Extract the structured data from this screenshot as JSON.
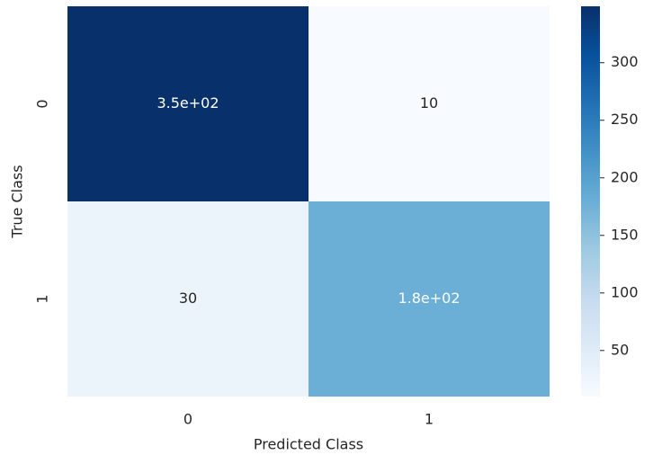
{
  "chart_data": {
    "type": "heatmap",
    "x_categories": [
      "0",
      "1"
    ],
    "y_categories": [
      "0",
      "1"
    ],
    "values": [
      [
        349,
        10
      ],
      [
        30,
        180
      ]
    ],
    "value_labels": [
      [
        "3.5e+02",
        "10"
      ],
      [
        "30",
        "1.8e+02"
      ]
    ],
    "xlabel": "Predicted Class",
    "ylabel": "True Class",
    "colormap": "Blues",
    "clim": [
      10,
      349
    ],
    "cticks": [
      50,
      100,
      150,
      200,
      250,
      300
    ]
  }
}
